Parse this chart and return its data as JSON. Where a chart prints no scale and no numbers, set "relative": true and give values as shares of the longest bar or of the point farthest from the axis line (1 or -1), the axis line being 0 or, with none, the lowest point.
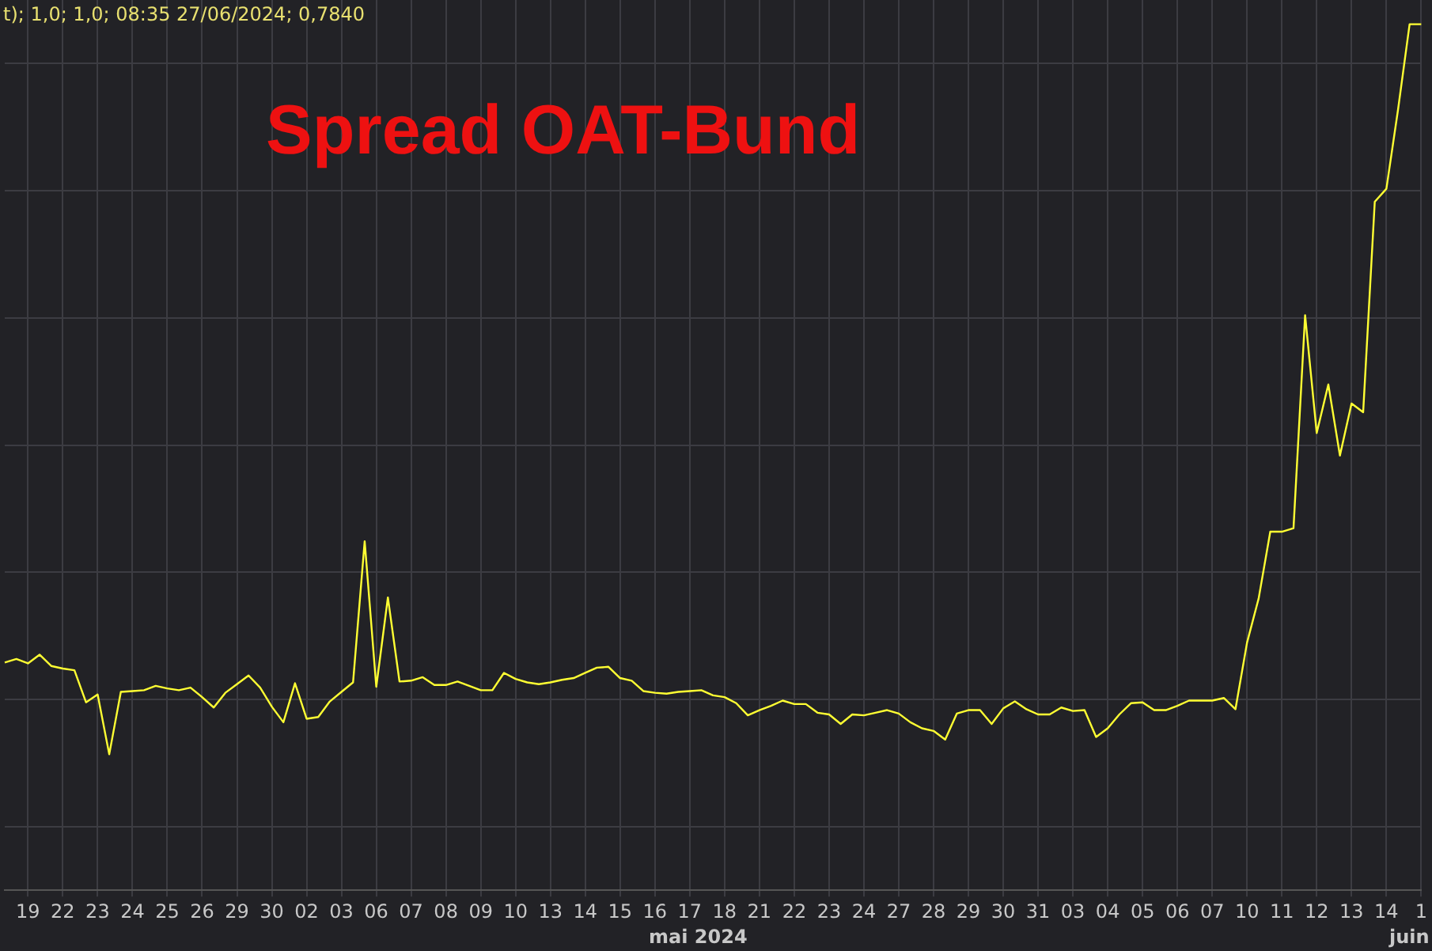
{
  "chart_data": {
    "type": "line",
    "title": "Spread OAT-Bund",
    "relative": true,
    "grid": true,
    "legend": false,
    "marker": "none",
    "line_style": "solid",
    "annotations": [
      "t);  1,0; 1,0; 08:35 27/06/2024; 0,7840",
      "mai 2024",
      "juin"
    ],
    "categories": [
      null,
      null,
      "19",
      null,
      null,
      "22",
      null,
      null,
      "23",
      null,
      null,
      "24",
      null,
      null,
      "25",
      null,
      null,
      "26",
      null,
      null,
      "29",
      null,
      null,
      "30",
      null,
      null,
      "02",
      null,
      null,
      "03",
      null,
      null,
      "06",
      null,
      null,
      "07",
      null,
      null,
      "08",
      null,
      null,
      "09",
      null,
      null,
      "10",
      null,
      null,
      "13",
      null,
      null,
      "14",
      null,
      null,
      "15",
      null,
      null,
      "16",
      null,
      null,
      "17",
      null,
      null,
      "18",
      null,
      null,
      "21",
      null,
      null,
      "22",
      null,
      null,
      "23",
      null,
      null,
      "24",
      null,
      null,
      "27",
      null,
      null,
      "28",
      null,
      null,
      "29",
      null,
      null,
      "30",
      null,
      null,
      "31",
      null,
      null,
      "03",
      null,
      null,
      "04",
      null,
      null,
      "05",
      null,
      null,
      "06",
      null,
      null,
      "07",
      null,
      null,
      "10",
      null,
      null,
      "11",
      null,
      null,
      "12",
      null,
      null,
      "13",
      null,
      null,
      "14",
      null,
      null,
      "1"
    ],
    "series": [
      {
        "color": "#ffff33",
        "values": [
          0.263,
          0.267,
          0.262,
          0.272,
          0.259,
          0.256,
          0.254,
          0.217,
          0.226,
          0.157,
          0.229,
          0.23,
          0.231,
          0.236,
          0.233,
          0.231,
          0.234,
          0.223,
          0.211,
          0.228,
          0.238,
          0.248,
          0.234,
          0.212,
          0.194,
          0.239,
          0.198,
          0.2,
          0.218,
          0.229,
          0.24,
          0.403,
          0.235,
          0.338,
          0.241,
          0.242,
          0.246,
          0.237,
          0.237,
          0.241,
          0.236,
          0.231,
          0.231,
          0.251,
          0.244,
          0.24,
          0.238,
          0.24,
          0.243,
          0.245,
          0.251,
          0.257,
          0.258,
          0.245,
          0.242,
          0.23,
          0.228,
          0.227,
          0.229,
          0.23,
          0.231,
          0.225,
          0.223,
          0.216,
          0.202,
          0.208,
          0.213,
          0.219,
          0.215,
          0.215,
          0.205,
          0.203,
          0.192,
          0.203,
          0.202,
          0.205,
          0.208,
          0.204,
          0.194,
          0.187,
          0.184,
          0.174,
          0.204,
          0.208,
          0.208,
          0.192,
          0.21,
          0.218,
          0.209,
          0.203,
          0.203,
          0.211,
          0.207,
          0.208,
          0.177,
          0.187,
          0.203,
          0.216,
          0.217,
          0.208,
          0.208,
          0.213,
          0.219,
          0.219,
          0.219,
          0.222,
          0.209,
          0.286,
          0.337,
          0.414,
          0.414,
          0.418,
          0.664,
          0.528,
          0.584,
          0.502,
          0.562,
          0.552,
          0.795,
          0.81,
          0.901,
          1,
          1
        ]
      }
    ]
  }
}
